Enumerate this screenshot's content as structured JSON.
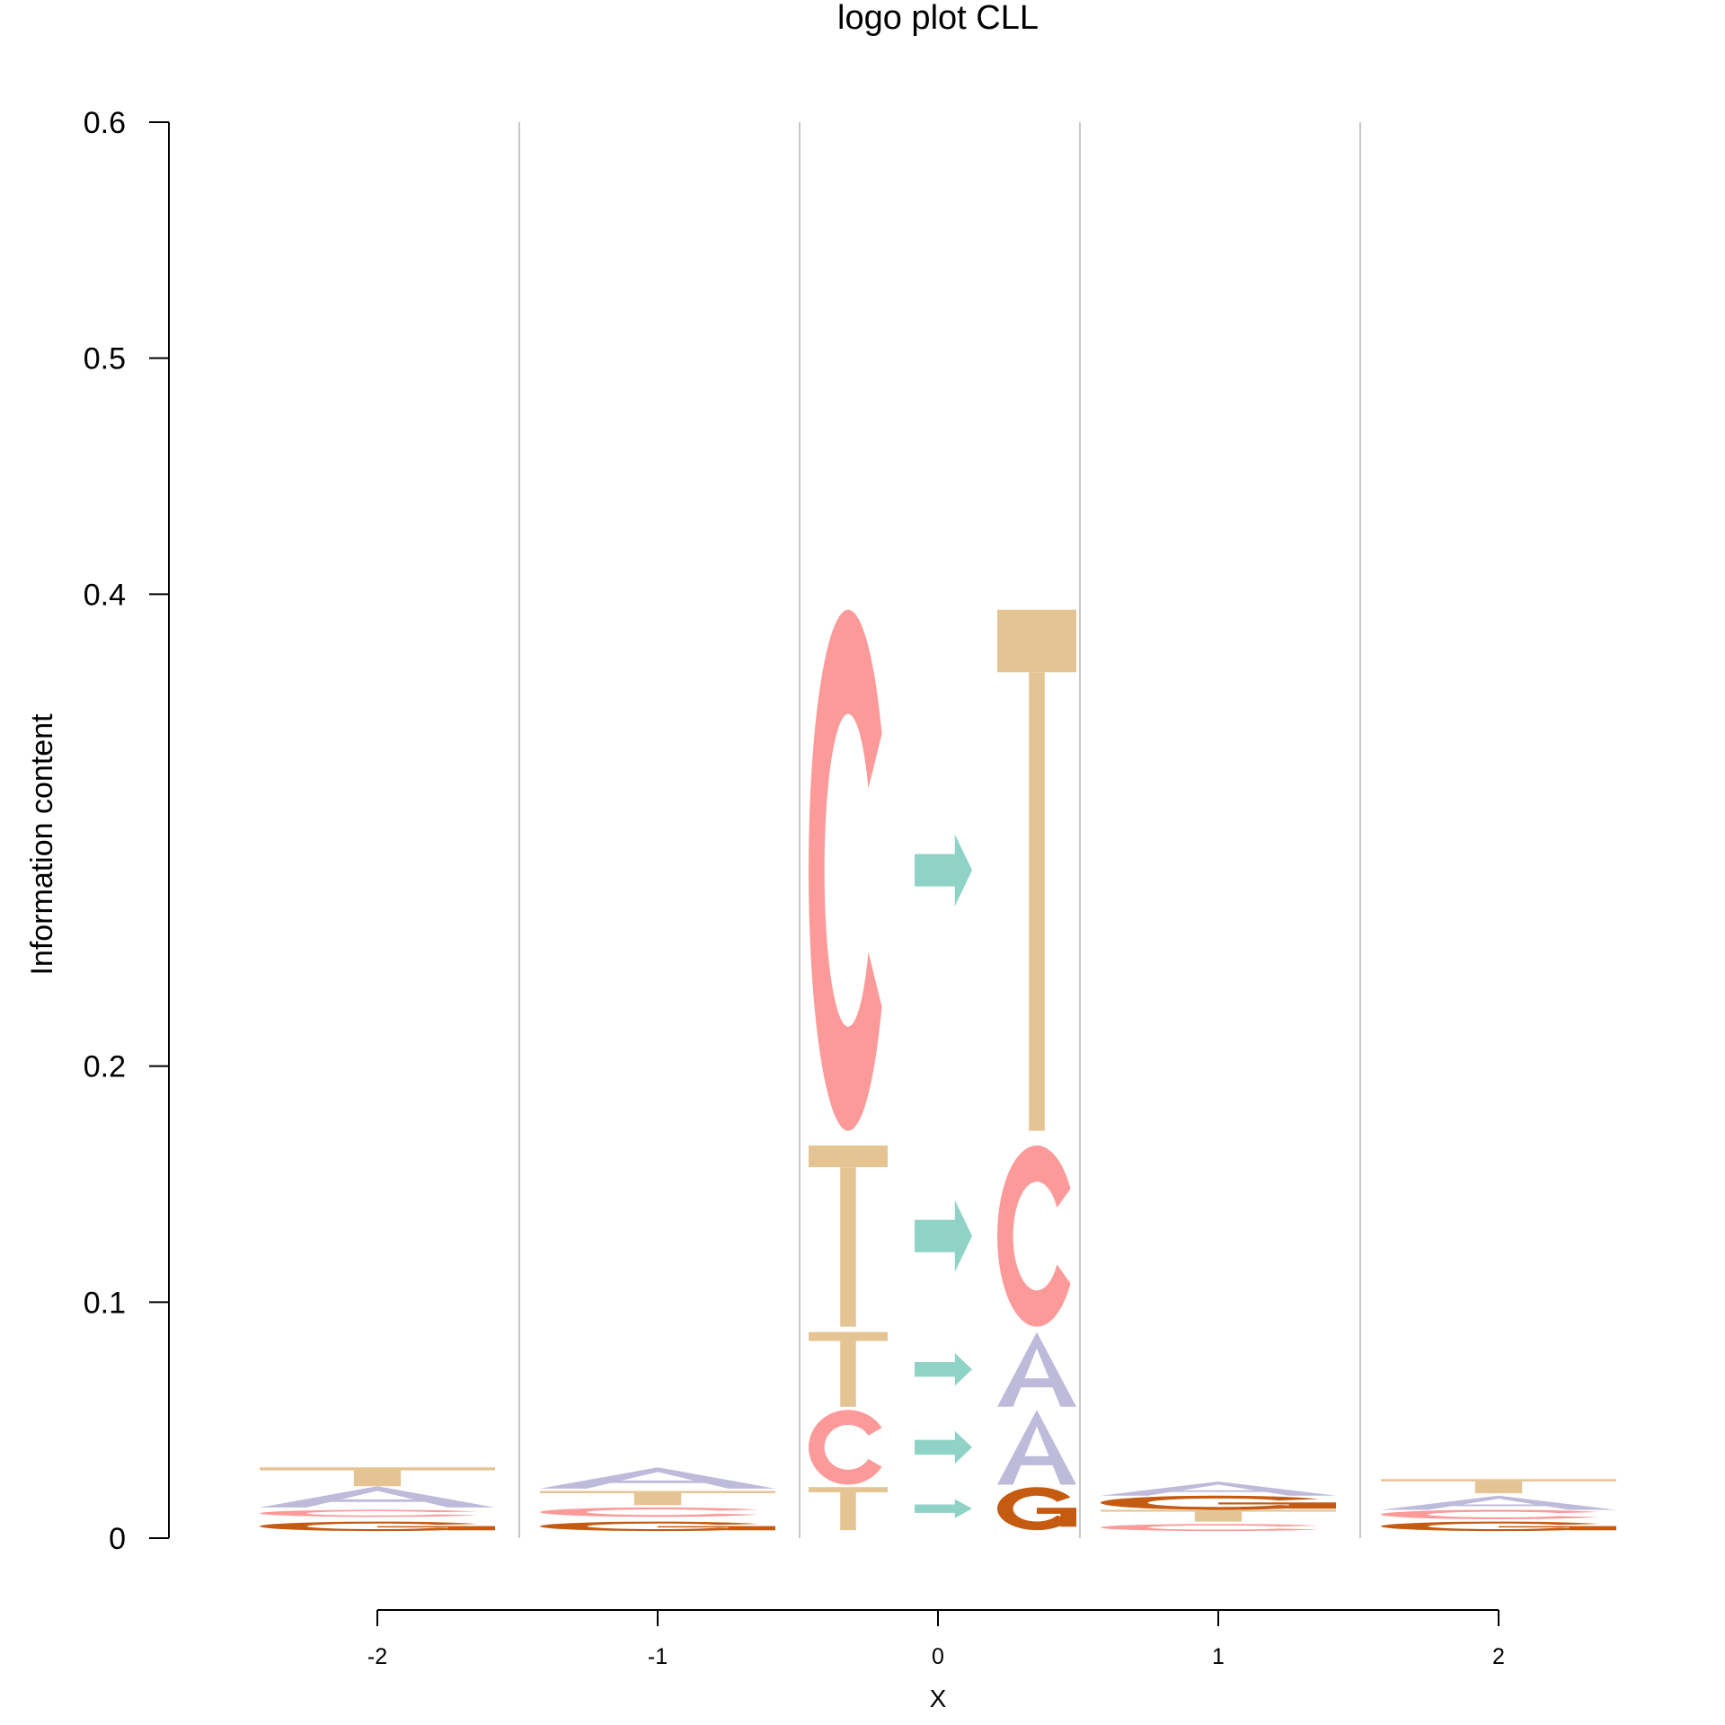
{
  "chart_data": {
    "type": "logo",
    "title": "logo plot CLL",
    "xlabel": "X",
    "ylabel": "Information content",
    "ylim": [
      0,
      0.6
    ],
    "y_ticks": [
      "0",
      "0.1",
      "0.2",
      "0.4",
      "0.5",
      "0.6"
    ],
    "x_ticks": [
      "-2",
      "-1",
      "0",
      "1",
      "2"
    ],
    "colors": {
      "A": "#BEBADA",
      "C": "#FB9A99",
      "G": "#C55A11",
      "T": "#E5C494",
      "arrow": "#8FD3C7",
      "separator": "#C8C8C8"
    },
    "flank_positions": [
      {
        "x": -2,
        "letters": [
          {
            "base": "G",
            "ymin": 0.003,
            "ymax": 0.007
          },
          {
            "base": "C",
            "ymin": 0.009,
            "ymax": 0.012
          },
          {
            "base": "A",
            "ymin": 0.013,
            "ymax": 0.022
          },
          {
            "base": "T",
            "ymin": 0.022,
            "ymax": 0.03
          }
        ]
      },
      {
        "x": -1,
        "letters": [
          {
            "base": "G",
            "ymin": 0.003,
            "ymax": 0.007
          },
          {
            "base": "C",
            "ymin": 0.009,
            "ymax": 0.013
          },
          {
            "base": "T",
            "ymin": 0.014,
            "ymax": 0.02
          },
          {
            "base": "A",
            "ymin": 0.021,
            "ymax": 0.03
          }
        ]
      },
      {
        "x": 1,
        "letters": [
          {
            "base": "C",
            "ymin": 0.003,
            "ymax": 0.006
          },
          {
            "base": "T",
            "ymin": 0.007,
            "ymax": 0.012
          },
          {
            "base": "G",
            "ymin": 0.012,
            "ymax": 0.018
          },
          {
            "base": "A",
            "ymin": 0.018,
            "ymax": 0.024
          }
        ]
      },
      {
        "x": 2,
        "letters": [
          {
            "base": "G",
            "ymin": 0.003,
            "ymax": 0.007
          },
          {
            "base": "C",
            "ymin": 0.008,
            "ymax": 0.012
          },
          {
            "base": "A",
            "ymin": 0.012,
            "ymax": 0.018
          },
          {
            "base": "T",
            "ymin": 0.019,
            "ymax": 0.025
          }
        ]
      }
    ],
    "substitutions": [
      {
        "from": "T",
        "to": "G",
        "ymin": 0.003,
        "ymax": 0.022
      },
      {
        "from": "C",
        "to": "A",
        "ymin": 0.022,
        "ymax": 0.055
      },
      {
        "from": "T",
        "to": "A",
        "ymin": 0.055,
        "ymax": 0.088
      },
      {
        "from": "T",
        "to": "C",
        "ymin": 0.088,
        "ymax": 0.168
      },
      {
        "from": "C",
        "to": "T",
        "ymin": 0.168,
        "ymax": 0.398
      }
    ]
  }
}
